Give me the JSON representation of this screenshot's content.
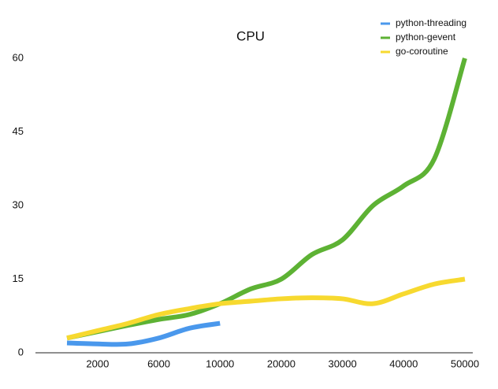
{
  "chart_data": {
    "type": "line",
    "title": "CPU",
    "categories": [
      null,
      "2000",
      null,
      "6000",
      null,
      "10000",
      null,
      "20000",
      null,
      "30000",
      null,
      "40000",
      null,
      "50000"
    ],
    "series": [
      {
        "name": "python-threading",
        "color": "#4a98ec",
        "values": [
          2,
          1.8,
          1.8,
          3,
          5,
          6,
          null,
          null,
          null,
          null,
          null,
          null,
          null,
          null
        ]
      },
      {
        "name": "python-gevent",
        "color": "#5db234",
        "values": [
          3,
          4.3,
          5.6,
          6.8,
          7.8,
          10,
          13,
          15,
          20,
          23,
          30,
          34,
          39.5,
          60
        ]
      },
      {
        "name": "go-coroutine",
        "color": "#f7d92f",
        "values": [
          3,
          4.5,
          6,
          7.8,
          9,
          10,
          10.5,
          11,
          11.2,
          11,
          10,
          12,
          14,
          15
        ]
      }
    ],
    "ylim": [
      0,
      60
    ],
    "yticks": [
      0,
      15,
      30,
      45,
      60
    ],
    "legend": "top-right",
    "grid": false
  }
}
